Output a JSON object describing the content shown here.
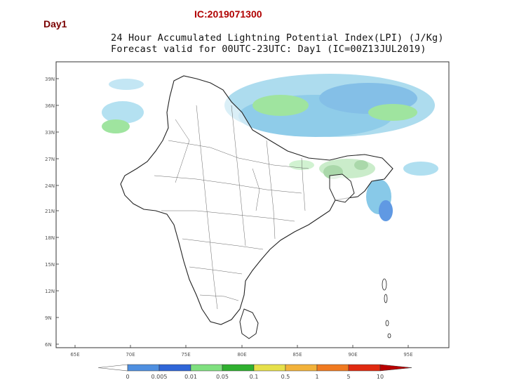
{
  "header": {
    "day": "Day1",
    "ic": "IC:2019071300"
  },
  "title": {
    "line1": "24 Hour Accumulated Lightning Potential Index(LPI) (J/Kg)",
    "line2": "Forecast valid for 00UTC-23UTC: Day1 (IC=00Z13JUL2019)"
  },
  "map": {
    "lat_ticks": [
      "39N",
      "36N",
      "33N",
      "27N",
      "24N",
      "21N",
      "18N",
      "15N",
      "12N",
      "9N",
      "6N"
    ],
    "lon_ticks": [
      "65E",
      "70E",
      "75E",
      "80E",
      "85E",
      "90E",
      "95E"
    ]
  },
  "colorbar": {
    "labels": [
      "0",
      "0.005",
      "0.01",
      "0.05",
      "0.1",
      "0.5",
      "1",
      "5",
      "10"
    ],
    "colors": [
      "#4f8fe0",
      "#2f66d8",
      "#7fe07f",
      "#2fb02f",
      "#e6e04a",
      "#f2b23a",
      "#f07a20",
      "#e02a10",
      "#b80000"
    ]
  }
}
